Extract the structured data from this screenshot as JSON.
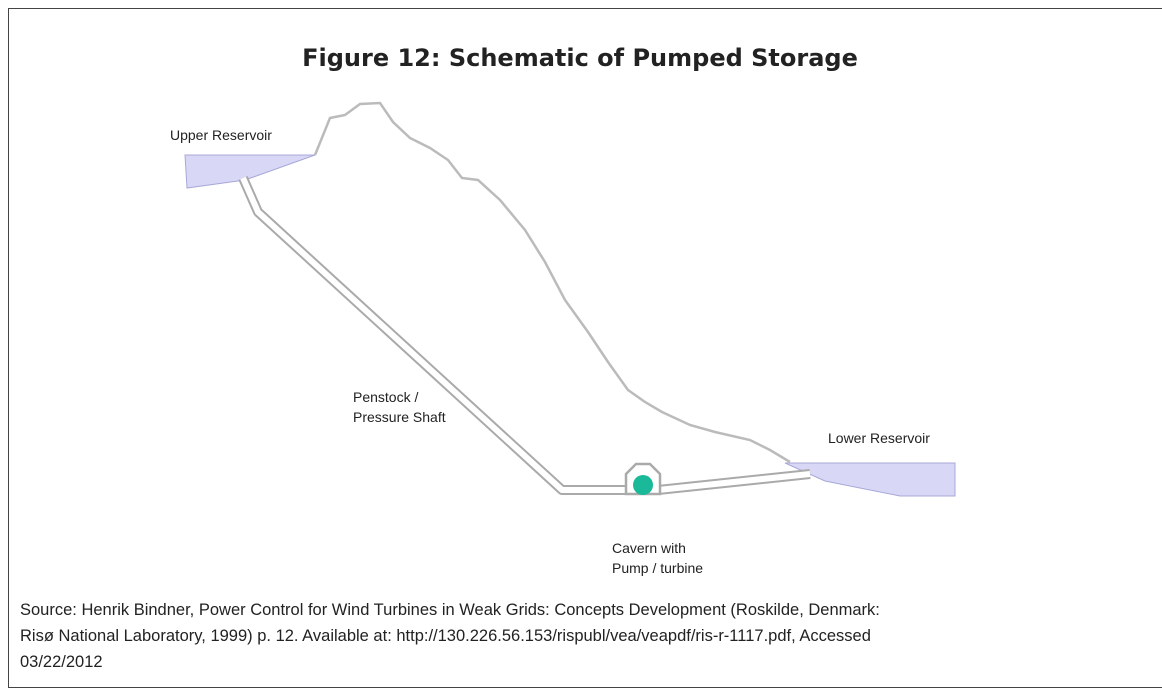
{
  "title": "Figure 12: Schematic of Pumped Storage",
  "labels": {
    "upper_reservoir": "Upper Reservoir",
    "penstock": [
      "Penstock /",
      "Pressure Shaft"
    ],
    "lower_reservoir": "Lower Reservoir",
    "cavern": [
      "Cavern with",
      "Pump / turbine"
    ]
  },
  "source": [
    "Source: Henrik Bindner, Power Control for Wind Turbines in Weak Grids: Concepts Development (Roskilde, Denmark:",
    "Risø National Laboratory, 1999) p. 12. Available at: http://130.226.56.153/rispubl/vea/veapdf/ris-r-1117.pdf, Accessed",
    "03/22/2012"
  ]
}
